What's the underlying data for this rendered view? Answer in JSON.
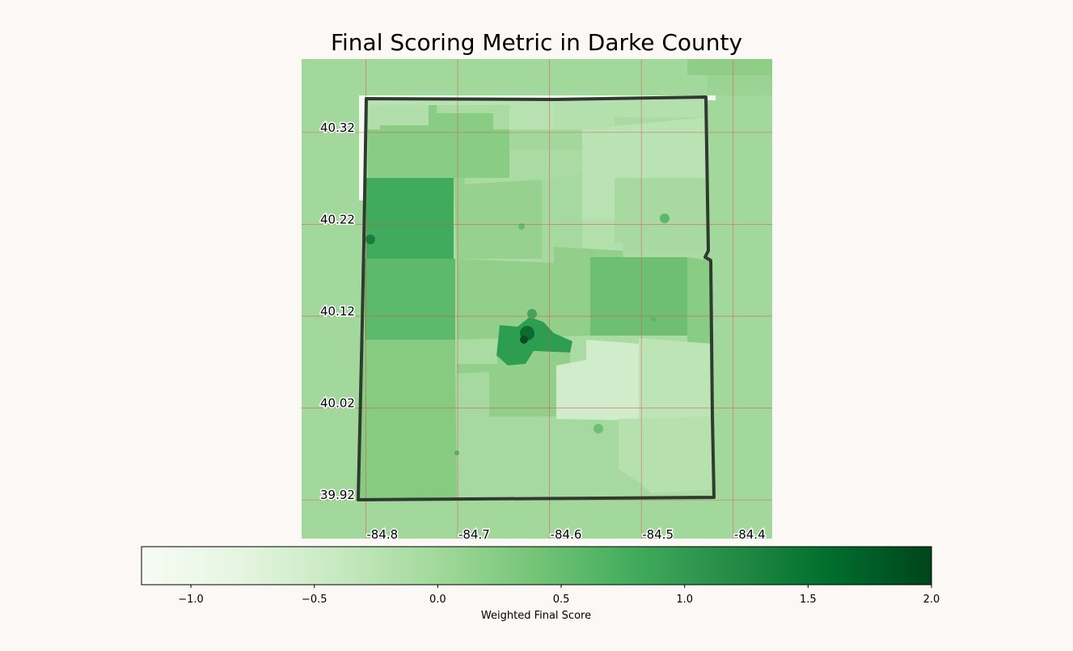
{
  "title": "Final Scoring Metric in Darke County",
  "map": {
    "lat_ticks": [
      "40.32",
      "40.22",
      "40.12",
      "40.02",
      "39.92"
    ],
    "lon_ticks": [
      "-84.8",
      "-84.7",
      "-84.6",
      "-84.5",
      "-84.4"
    ],
    "lat_values": [
      40.32,
      40.22,
      40.12,
      40.02,
      39.92
    ],
    "lon_values": [
      -84.8,
      -84.7,
      -84.6,
      -84.5,
      -84.4
    ],
    "gridline_color": "#d9534f",
    "boundary_color": "#2f3b30",
    "colormap": "Greens"
  },
  "colorbar": {
    "label": "Weighted Final Score",
    "min": -1.2,
    "max": 2.0,
    "ticks": [
      -1.0,
      -0.5,
      0.0,
      0.5,
      1.0,
      1.5,
      2.0
    ],
    "tick_labels": [
      "−1.0",
      "−0.5",
      "0.0",
      "0.5",
      "1.0",
      "1.5",
      "2.0"
    ]
  }
}
